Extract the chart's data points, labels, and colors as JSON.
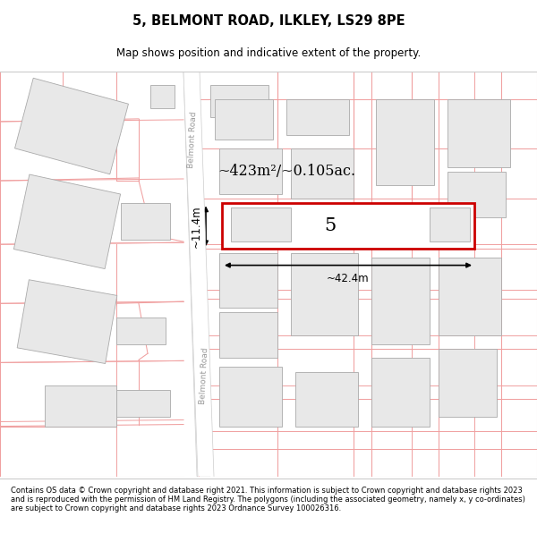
{
  "title": "5, BELMONT ROAD, ILKLEY, LS29 8PE",
  "subtitle": "Map shows position and indicative extent of the property.",
  "footer": "Contains OS data © Crown copyright and database right 2021. This information is subject to Crown copyright and database rights 2023 and is reproduced with the permission of HM Land Registry. The polygons (including the associated geometry, namely x, y co-ordinates) are subject to Crown copyright and database rights 2023 Ordnance Survey 100026316.",
  "map_bg": "#ffffff",
  "building_fill": "#e8e8e8",
  "building_edge": "#aaaaaa",
  "plot_line_color": "#f0a0a0",
  "highlight_color": "#cc0000",
  "area_label": "~423m²/~0.105ac.",
  "width_label": "~42.4m",
  "height_label": "~11.4m",
  "property_label": "5",
  "belmont_road_label": "Belmont Road"
}
